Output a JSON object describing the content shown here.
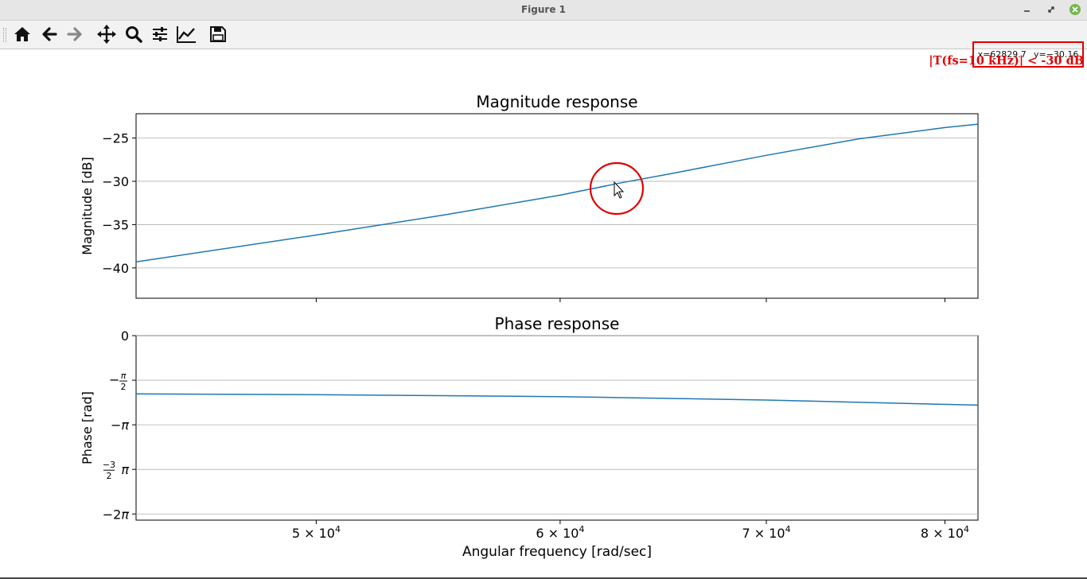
{
  "window": {
    "title": "Figure 1",
    "controls": [
      "minimize-icon",
      "maximize-icon",
      "close-icon"
    ],
    "close_color": "#76b64b"
  },
  "toolbar": {
    "buttons": [
      {
        "name": "home-button",
        "icon": "home-icon"
      },
      {
        "name": "back-button",
        "icon": "arrow-left-icon"
      },
      {
        "name": "forward-button",
        "icon": "arrow-right-icon"
      },
      {
        "name": "pan-button",
        "icon": "move-arrows-icon"
      },
      {
        "name": "zoom-button",
        "icon": "magnifier-icon"
      },
      {
        "name": "subplots-button",
        "icon": "sliders-icon"
      },
      {
        "name": "axes-edit-button",
        "icon": "line-chart-icon"
      },
      {
        "name": "save-button",
        "icon": "floppy-disk-icon"
      }
    ],
    "coords": {
      "x": "x=62829.7",
      "y": "y=−30.16"
    }
  },
  "annotation": {
    "text": "|T(fs=10 kHz)| < -30 dB",
    "color": "#e00000"
  },
  "chart_data": [
    {
      "type": "line",
      "title": "Magnitude response",
      "xlabel": "",
      "ylabel": "Magnitude [dB]",
      "xscale": "log",
      "xlim": [
        43700,
        82000
      ],
      "ylim": [
        -43.5,
        -22.2
      ],
      "yticks": [
        -25,
        -30,
        -35,
        -40
      ],
      "ytick_labels": [
        "−25",
        "−30",
        "−35",
        "−40"
      ],
      "grid": "y",
      "series": [
        {
          "color": "#1f77b4",
          "x": [
            43700,
            50000,
            55000,
            60000,
            62830,
            65000,
            70000,
            75000,
            80000,
            82000
          ],
          "y": [
            -39.3,
            -36.2,
            -33.9,
            -31.6,
            -30.16,
            -29.2,
            -27.0,
            -25.1,
            -23.8,
            -23.4
          ]
        }
      ]
    },
    {
      "type": "line",
      "title": "Phase response",
      "xlabel": "Angular frequency [rad/sec]",
      "ylabel": "Phase [rad]",
      "xscale": "log",
      "xlim": [
        43700,
        82000
      ],
      "ylim": [
        -6.5,
        0
      ],
      "yticks": [
        0,
        -1.5708,
        -3.1416,
        -4.7124,
        -6.2832
      ],
      "ytick_labels": [
        "0",
        "−π/2",
        "−π",
        "−3/2 π",
        "−2π"
      ],
      "xticks": [
        50000,
        60000,
        70000,
        80000
      ],
      "xtick_labels": [
        "5 × 10^4",
        "6 × 10^4",
        "7 × 10^4",
        "8 × 10^4"
      ],
      "grid": "y",
      "series": [
        {
          "color": "#1f77b4",
          "x": [
            43700,
            50000,
            60000,
            70000,
            82000
          ],
          "y": [
            -2.05,
            -2.08,
            -2.15,
            -2.27,
            -2.45
          ]
        }
      ]
    }
  ]
}
